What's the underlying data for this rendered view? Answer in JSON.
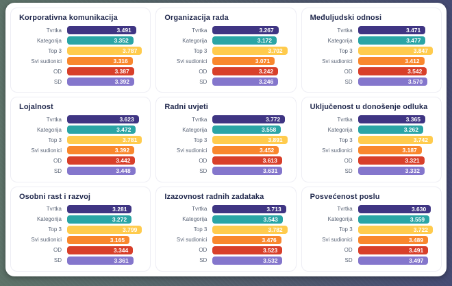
{
  "ui": {
    "row_labels": [
      "Tvrtka",
      "Kategorija",
      "Top 3",
      "Svi sudionici",
      "OD",
      "SD"
    ],
    "bar_colors": [
      "#3f3583",
      "#2aa5a5",
      "#ffcb4d",
      "#f9872d",
      "#d83f2a",
      "#8476cc"
    ],
    "value_text_color": "#ffffff",
    "title_color": "#222a4e",
    "label_color": "#5c6678",
    "card_background": "#ffffff",
    "panel_border_color": "#ededf4"
  },
  "chart_data": [
    {
      "type": "bar",
      "title": "Korporativna komunikacija",
      "categories": [
        "Tvrtka",
        "Kategorija",
        "Top 3",
        "Svi sudionici",
        "OD",
        "SD"
      ],
      "values": [
        3.491,
        3.352,
        3.787,
        3.316,
        3.387,
        3.392
      ],
      "xlim": [
        0,
        3.787
      ]
    },
    {
      "type": "bar",
      "title": "Organizacija rada",
      "categories": [
        "Tvrtka",
        "Kategorija",
        "Top 3",
        "Svi sudionici",
        "OD",
        "SD"
      ],
      "values": [
        3.267,
        3.172,
        3.702,
        3.071,
        3.242,
        3.246
      ],
      "xlim": [
        0,
        3.702
      ]
    },
    {
      "type": "bar",
      "title": "Međuljudski odnosi",
      "categories": [
        "Tvrtka",
        "Kategorija",
        "Top 3",
        "Svi sudionici",
        "OD",
        "SD"
      ],
      "values": [
        3.471,
        3.477,
        3.847,
        3.412,
        3.542,
        3.57
      ],
      "xlim": [
        0,
        3.847
      ]
    },
    {
      "type": "bar",
      "title": "Lojalnost",
      "categories": [
        "Tvrtka",
        "Kategorija",
        "Top 3",
        "Svi sudionici",
        "OD",
        "SD"
      ],
      "values": [
        3.623,
        3.472,
        3.781,
        3.392,
        3.442,
        3.448
      ],
      "xlim": [
        0,
        3.781
      ]
    },
    {
      "type": "bar",
      "title": "Radni uvjeti",
      "categories": [
        "Tvrtka",
        "Kategorija",
        "Top 3",
        "Svi sudionici",
        "OD",
        "SD"
      ],
      "values": [
        3.772,
        3.558,
        3.891,
        3.452,
        3.613,
        3.631
      ],
      "xlim": [
        0,
        3.891
      ]
    },
    {
      "type": "bar",
      "title": "Uključenost u donošenje odluka",
      "categories": [
        "Tvrtka",
        "Kategorija",
        "Top 3",
        "Svi sudionici",
        "OD",
        "SD"
      ],
      "values": [
        3.365,
        3.262,
        3.742,
        3.187,
        3.321,
        3.332
      ],
      "xlim": [
        0,
        3.742
      ]
    },
    {
      "type": "bar",
      "title": "Osobni rast i razvoj",
      "categories": [
        "Tvrtka",
        "Kategorija",
        "Top 3",
        "Svi sudionici",
        "OD",
        "SD"
      ],
      "values": [
        3.281,
        3.272,
        3.799,
        3.165,
        3.344,
        3.361
      ],
      "xlim": [
        0,
        3.799
      ]
    },
    {
      "type": "bar",
      "title": "Izazovnost radnih zadataka",
      "categories": [
        "Tvrtka",
        "Kategorija",
        "Top 3",
        "Svi sudionici",
        "OD",
        "SD"
      ],
      "values": [
        3.713,
        3.543,
        3.782,
        3.476,
        3.523,
        3.532
      ],
      "xlim": [
        0,
        3.782
      ]
    },
    {
      "type": "bar",
      "title": "Posvećenost poslu",
      "categories": [
        "Tvrtka",
        "Kategorija",
        "Top 3",
        "Svi sudionici",
        "OD",
        "SD"
      ],
      "values": [
        3.63,
        3.559,
        3.722,
        3.489,
        3.491,
        3.497
      ],
      "xlim": [
        0,
        3.722
      ]
    }
  ]
}
